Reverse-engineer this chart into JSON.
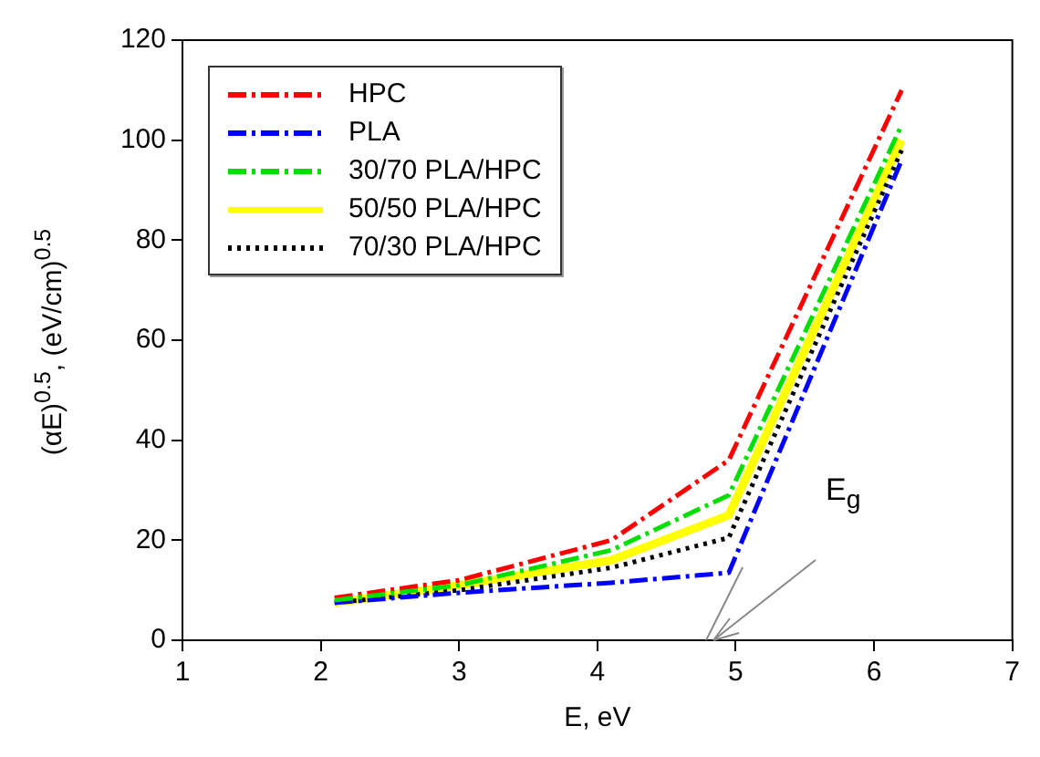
{
  "chart_data": {
    "type": "line",
    "xlabel": "E, eV",
    "ylabel": "(αE)$^{0.5}$, (eV/cm)$^{0.5}$",
    "x": [
      2.1,
      3,
      4.1,
      4.95,
      6.2
    ],
    "series": [
      {
        "name": "HPC",
        "color": "#ff0000",
        "line_style": "dashed",
        "values": [
          8.5,
          12,
          20,
          36,
          110
        ]
      },
      {
        "name": "PLA",
        "color": "#0000ff",
        "line_style": "dashed",
        "values": [
          7.5,
          9.5,
          11.5,
          13.5,
          96
        ]
      },
      {
        "name": "30/70 PLA/HPC",
        "color": "#00e000",
        "line_style": "dashed",
        "values": [
          8,
          11,
          18,
          29,
          103
        ]
      },
      {
        "name": "50/50 PLA/HPC",
        "color": "#ffff00",
        "line_style": "solid",
        "values": [
          7.5,
          11,
          16,
          25,
          100
        ]
      },
      {
        "name": "70/30 PLA/HPC",
        "color": "#000000",
        "line_style": "dotted",
        "values": [
          7.5,
          10,
          14.5,
          20.5,
          98
        ]
      }
    ],
    "xlim": [
      1,
      7
    ],
    "xticks": [
      1,
      2,
      3,
      4,
      5,
      6,
      7
    ],
    "ylim": [
      0,
      120
    ],
    "yticks": [
      0,
      20,
      40,
      60,
      80,
      100,
      120
    ],
    "grid": false,
    "legend": "top left",
    "marker": "none",
    "annotations": [
      "E$_{g}$"
    ]
  }
}
